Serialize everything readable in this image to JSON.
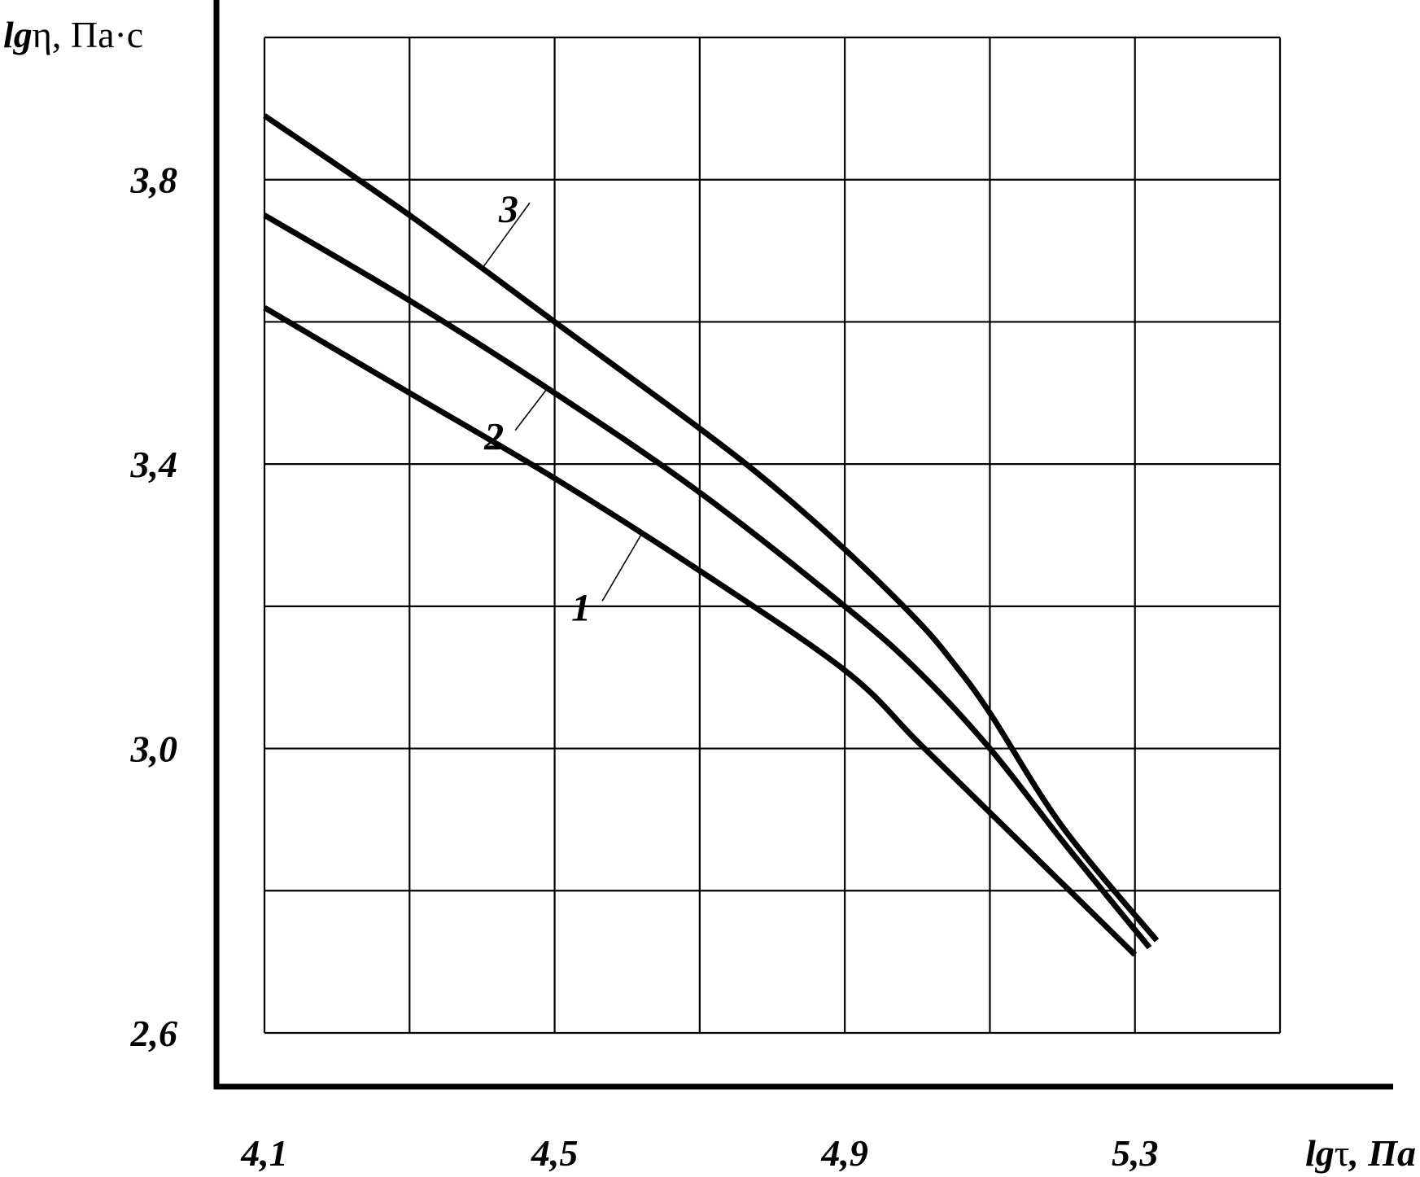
{
  "chart_data": {
    "type": "line",
    "xlabel_prefix": "lg",
    "xlabel_symbol": "τ",
    "xlabel_unit": ", Па",
    "ylabel_prefix": "lg",
    "ylabel_symbol": "η",
    "ylabel_unit": ", Па·с",
    "xlim": [
      4.1,
      5.5
    ],
    "ylim": [
      2.6,
      4.0
    ],
    "x_ticks": [
      {
        "value": 4.1,
        "label": "4,1"
      },
      {
        "value": 4.5,
        "label": "4,5"
      },
      {
        "value": 4.9,
        "label": "4,9"
      },
      {
        "value": 5.3,
        "label": "5,3"
      }
    ],
    "y_ticks": [
      {
        "value": 3.8,
        "label": "3,8"
      },
      {
        "value": 3.4,
        "label": "3,4"
      },
      {
        "value": 3.0,
        "label": "3,0"
      },
      {
        "value": 2.6,
        "label": "2,6"
      }
    ],
    "grid": true,
    "x_grid_step": 0.2,
    "y_grid_step": 0.2,
    "series": [
      {
        "label": "1",
        "x": [
          4.1,
          4.3,
          4.5,
          4.7,
          4.9,
          5.0,
          5.1,
          5.2,
          5.3
        ],
        "y": [
          3.62,
          3.5,
          3.38,
          3.25,
          3.11,
          3.01,
          2.91,
          2.81,
          2.71
        ],
        "label_at": [
          4.55,
          3.18
        ]
      },
      {
        "label": "2",
        "x": [
          4.1,
          4.3,
          4.5,
          4.7,
          4.9,
          5.0,
          5.1,
          5.2,
          5.32
        ],
        "y": [
          3.75,
          3.63,
          3.5,
          3.36,
          3.2,
          3.11,
          3.0,
          2.87,
          2.72
        ],
        "label_at": [
          4.43,
          3.42
        ]
      },
      {
        "label": "3",
        "x": [
          4.1,
          4.3,
          4.5,
          4.7,
          4.8,
          4.9,
          5.0,
          5.05,
          5.1,
          5.2,
          5.33
        ],
        "y": [
          3.89,
          3.75,
          3.6,
          3.45,
          3.37,
          3.28,
          3.18,
          3.12,
          3.05,
          2.89,
          2.73
        ],
        "label_at": [
          4.45,
          3.74
        ]
      }
    ]
  }
}
